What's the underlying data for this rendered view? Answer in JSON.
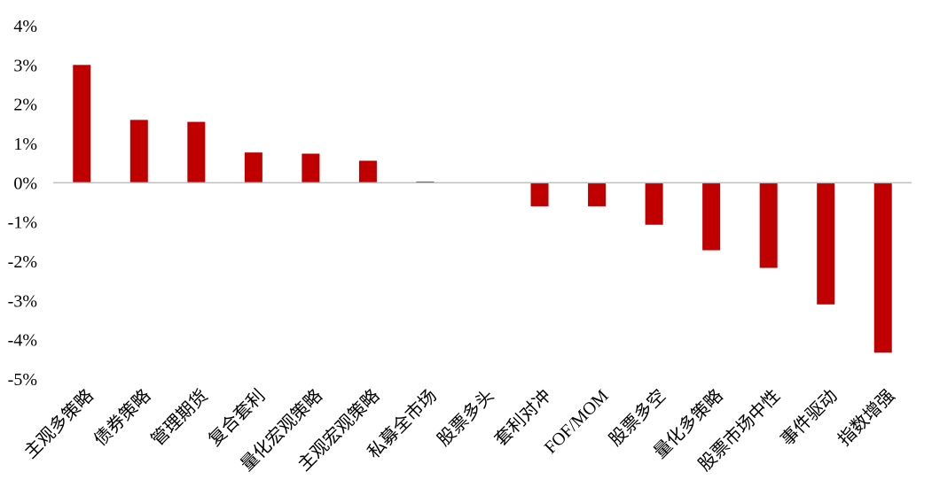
{
  "colors": {
    "bar": "#C00000",
    "zero_line": "#BFBFBF",
    "text": "#000000"
  },
  "chart_data": {
    "type": "bar",
    "categories": [
      "主观多策略",
      "债券策略",
      "管理期货",
      "复合套利",
      "量化宏观策略",
      "主观宏观策略",
      "私募全市场",
      "股票多头",
      "套利对冲",
      "FOF/MOM",
      "股票多空",
      "量化多策略",
      "股票市场中性",
      "事件驱动",
      "指数增强"
    ],
    "values": [
      3.0,
      1.6,
      1.55,
      0.77,
      0.74,
      0.56,
      0.03,
      0.0,
      -0.6,
      -0.6,
      -1.07,
      -1.72,
      -2.17,
      -3.1,
      -4.33
    ],
    "ylim": [
      -5,
      4
    ],
    "yticks": [
      4,
      3,
      2,
      1,
      0,
      -1,
      -2,
      -3,
      -4,
      -5
    ],
    "ytick_labels": [
      "4%",
      "3%",
      "2%",
      "1%",
      "0%",
      "-1%",
      "-2%",
      "-3%",
      "-4%",
      "-5%"
    ],
    "grid": false,
    "title": "",
    "xlabel": "",
    "ylabel": ""
  }
}
